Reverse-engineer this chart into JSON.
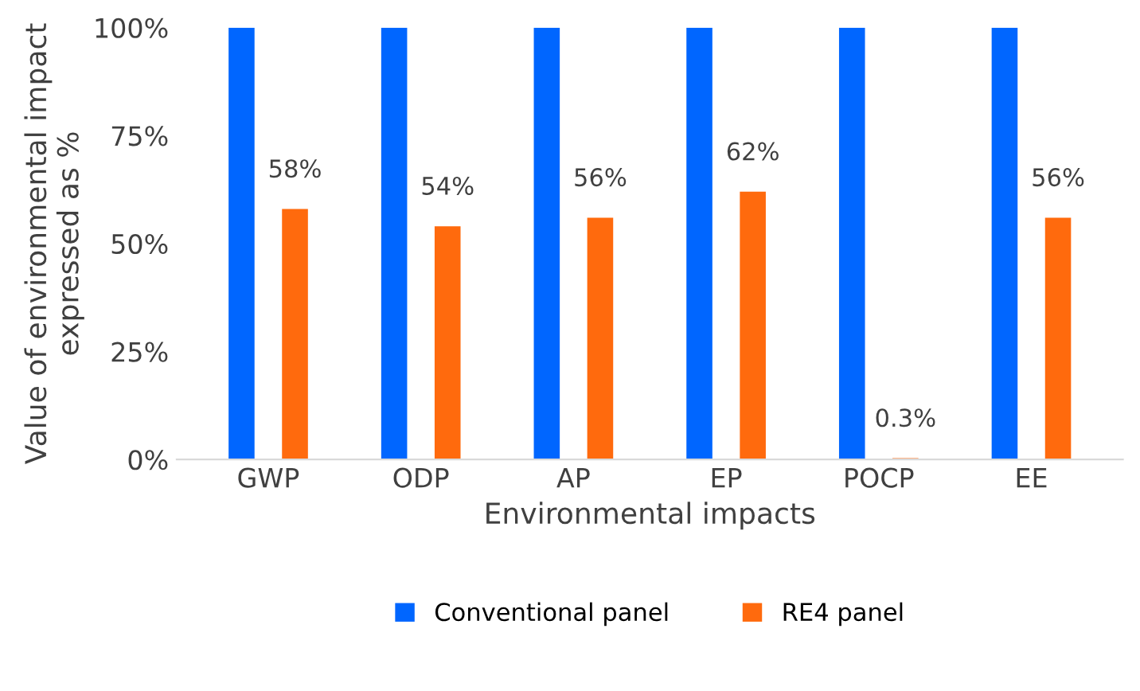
{
  "chart_data": {
    "type": "bar",
    "xlabel": "Environmental impacts",
    "ylabel": "Value of environmental impact\nexpressed as %",
    "categories": [
      "GWP",
      "ODP",
      "AP",
      "EP",
      "POCP",
      "EE"
    ],
    "series": [
      {
        "name": "Conventional panel",
        "color": "#0066ff",
        "values": [
          100,
          100,
          100,
          100,
          100,
          100
        ]
      },
      {
        "name": "RE4 panel",
        "color": "#ff6a0d",
        "values": [
          58,
          54,
          56,
          62,
          0.3,
          56
        ],
        "value_labels": [
          "58%",
          "54%",
          "56%",
          "62%",
          "0.3%",
          "56%"
        ]
      }
    ],
    "ylim": [
      0,
      100
    ],
    "yticks": [
      {
        "value": 0,
        "label": "0%"
      },
      {
        "value": 25,
        "label": "25%"
      },
      {
        "value": 50,
        "label": "50%"
      },
      {
        "value": 75,
        "label": "75%"
      },
      {
        "value": 100,
        "label": "100%"
      }
    ],
    "grid": false,
    "legend": "bottom"
  }
}
